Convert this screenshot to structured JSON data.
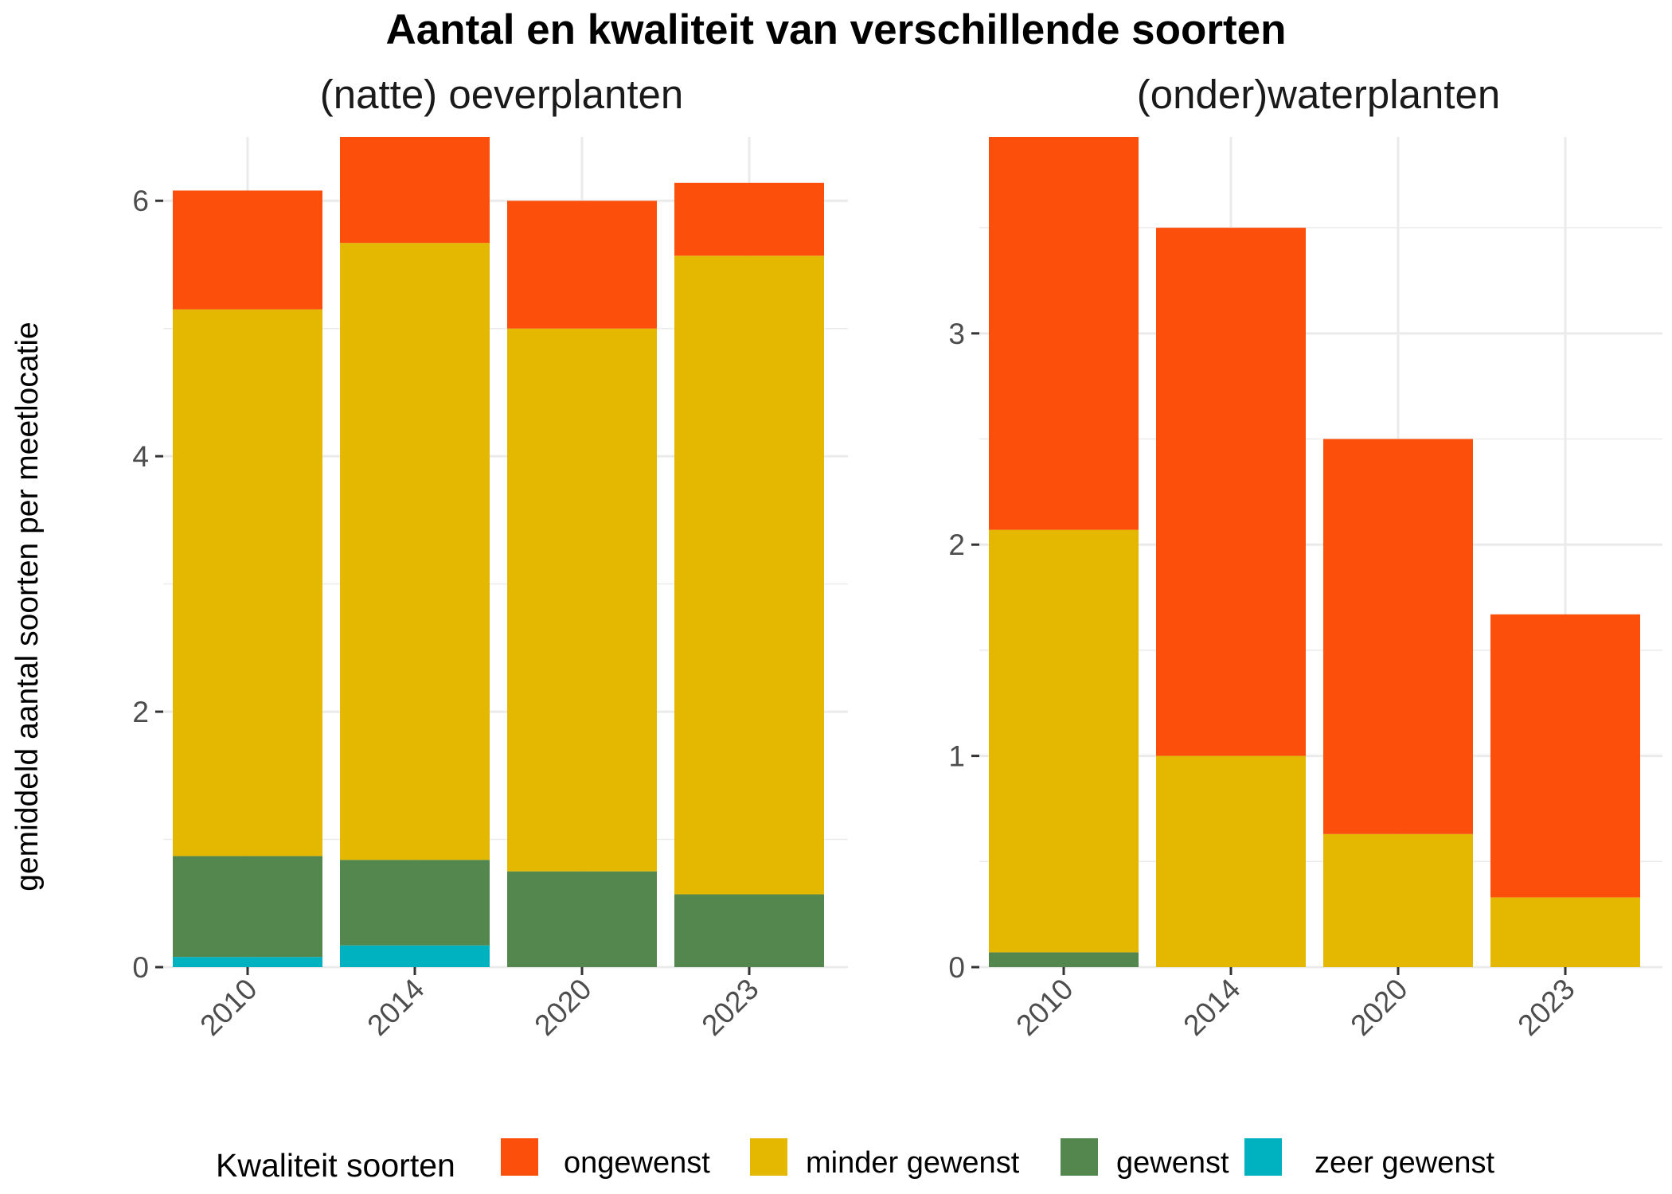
{
  "title": "Aantal en kwaliteit van verschillende soorten",
  "ylabel": "gemiddeld aantal soorten per meetlocatie",
  "legend": {
    "title": "Kwaliteit soorten",
    "items": [
      {
        "label": "ongewenst",
        "color": "#fd4f0c"
      },
      {
        "label": "minder gewenst",
        "color": "#e4b800"
      },
      {
        "label": "gewenst",
        "color": "#53874e"
      },
      {
        "label": "zeer gewenst",
        "color": "#00b1bf"
      }
    ]
  },
  "chart_data": [
    {
      "type": "bar",
      "stacked": true,
      "title": "(natte) oeverplanten",
      "xlabel": "",
      "ylabel": "gemiddeld aantal soorten per meetlocatie",
      "categories": [
        "2010",
        "2014",
        "2020",
        "2023"
      ],
      "ylim": [
        0,
        6.5
      ],
      "yticks": [
        0,
        2,
        4,
        6
      ],
      "grid": true,
      "legend_position": "bottom",
      "series": [
        {
          "name": "zeer gewenst",
          "color": "#00b1bf",
          "values": [
            0.08,
            0.17,
            0,
            0
          ]
        },
        {
          "name": "gewenst",
          "color": "#53874e",
          "values": [
            0.79,
            0.67,
            0.75,
            0.57
          ]
        },
        {
          "name": "minder gewenst",
          "color": "#e4b800",
          "values": [
            4.28,
            4.83,
            4.25,
            5.0
          ]
        },
        {
          "name": "ongewenst",
          "color": "#fd4f0c",
          "values": [
            0.93,
            0.83,
            1.0,
            0.57
          ]
        }
      ]
    },
    {
      "type": "bar",
      "stacked": true,
      "title": "(onder)waterplanten",
      "xlabel": "",
      "ylabel": "gemiddeld aantal soorten per meetlocatie",
      "categories": [
        "2010",
        "2014",
        "2020",
        "2023"
      ],
      "ylim": [
        0,
        3.93
      ],
      "yticks": [
        0,
        1,
        2,
        3
      ],
      "grid": true,
      "legend_position": "bottom",
      "series": [
        {
          "name": "zeer gewenst",
          "color": "#00b1bf",
          "values": [
            0,
            0,
            0,
            0
          ]
        },
        {
          "name": "gewenst",
          "color": "#53874e",
          "values": [
            0.07,
            0,
            0,
            0
          ]
        },
        {
          "name": "minder gewenst",
          "color": "#e4b800",
          "values": [
            2.0,
            1.0,
            0.63,
            0.33
          ]
        },
        {
          "name": "ongewenst",
          "color": "#fd4f0c",
          "values": [
            1.86,
            2.5,
            1.87,
            1.34
          ]
        }
      ]
    }
  ]
}
